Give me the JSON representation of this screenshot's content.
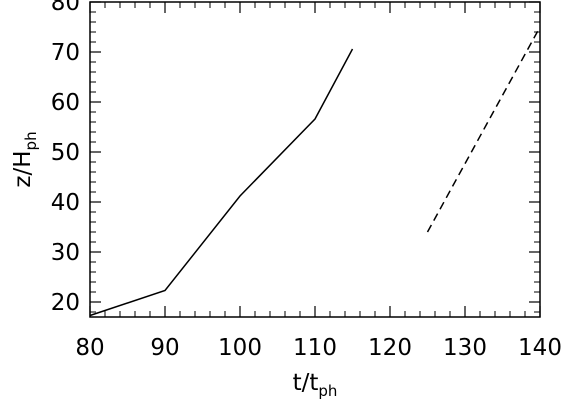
{
  "chart_data": {
    "type": "line",
    "title": "",
    "xlabel": {
      "main": "t/t",
      "sub": "ph"
    },
    "ylabel": {
      "main": "z/H",
      "sub": "ph"
    },
    "xlim": [
      80,
      140
    ],
    "ylim": [
      17,
      80
    ],
    "xticks": [
      80,
      90,
      100,
      110,
      120,
      130,
      140
    ],
    "yticks": [
      20,
      30,
      40,
      50,
      60,
      70,
      80
    ],
    "grid": false,
    "legend": "none",
    "series": [
      {
        "style": "solid",
        "color": "#000000",
        "points": [
          [
            80,
            17.3
          ],
          [
            90,
            22.3
          ],
          [
            100,
            41.2
          ],
          [
            110,
            56.6
          ],
          [
            115,
            70.6
          ]
        ]
      },
      {
        "style": "dashed",
        "color": "#000000",
        "points": [
          [
            125,
            34.0
          ],
          [
            140,
            75.0
          ]
        ]
      }
    ]
  }
}
